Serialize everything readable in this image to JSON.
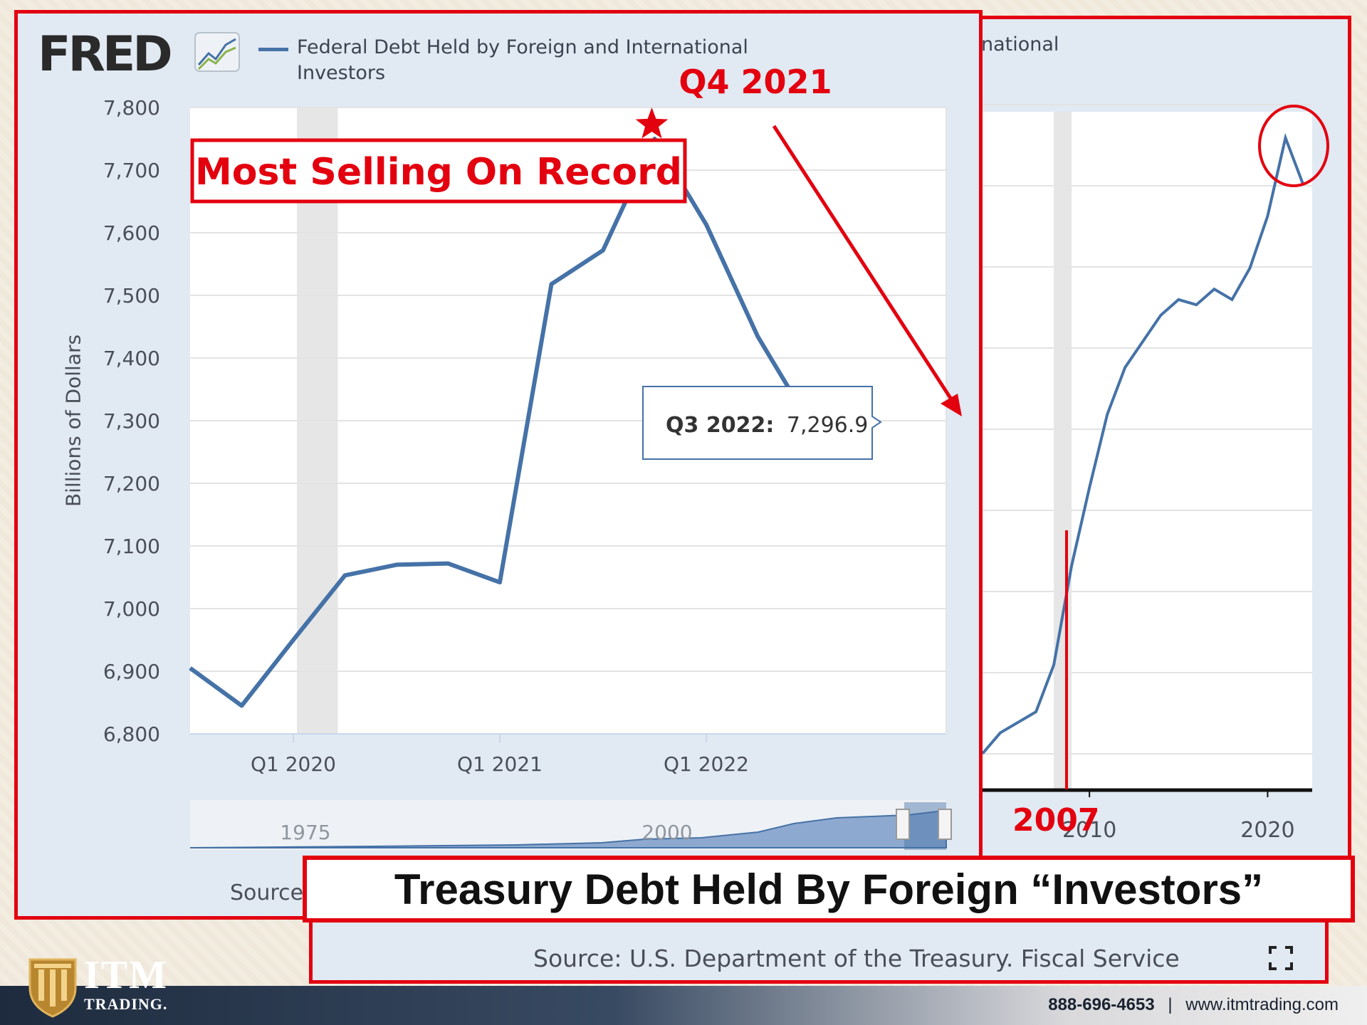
{
  "colors": {
    "series": "#4572a7",
    "annotation": "#e3000f",
    "panel_bg": "#e1e9f2",
    "recession": "#e6e6e6"
  },
  "branding": {
    "fred_logo": "FRED",
    "fred_logo_icon": "trend-line-icon",
    "itm_logo_icon": "column-shield-icon",
    "itm_name": "ITM",
    "itm_sub": "TRADING.",
    "phone": "888-696-4653",
    "separator": "|",
    "website": "www.itmtrading.com"
  },
  "headline": "Treasury Debt Held By Foreign “Investors”",
  "bottom_source": "Source: U.S. Department of the Treasury. Fiscal Service",
  "expand_icon": "expand-icon",
  "left_source_fragment": "Source",
  "annotations": {
    "peak_label": "Q4 2021",
    "record_box": "Most Selling On Record",
    "tooltip_label": "Q3 2022:",
    "tooltip_value": "7,296.9",
    "year_2007": "2007"
  },
  "chart_data": [
    {
      "type": "line",
      "legend": "Federal Debt Held by Foreign and International Investors",
      "ylabel": "Billions of Dollars",
      "ylim": [
        6800,
        7800
      ],
      "yticks": [
        "6,800",
        "6,900",
        "7,000",
        "7,100",
        "7,200",
        "7,300",
        "7,400",
        "7,500",
        "7,600",
        "7,700",
        "7,800"
      ],
      "xticks": [
        "Q1 2020",
        "Q1 2021",
        "Q1 2022"
      ],
      "navigator_labels": [
        "1975",
        "2000"
      ],
      "x": [
        "Q3 2019",
        "Q4 2019",
        "Q1 2020",
        "Q2 2020",
        "Q3 2020",
        "Q4 2020",
        "Q1 2021",
        "Q2 2021",
        "Q3 2021",
        "Q4 2021",
        "Q1 2022",
        "Q2 2022",
        "Q3 2022"
      ],
      "values": [
        6905,
        6845,
        6950,
        7053,
        7070,
        7072,
        7042,
        7518,
        7572,
        7750,
        7613,
        7434,
        7296.9
      ],
      "recession": [
        "Q1 2020",
        "Q2 2020"
      ],
      "grid": true
    },
    {
      "type": "line",
      "legend_fragment": "national",
      "xticks": [
        "2010",
        "2020"
      ],
      "x": [
        2004,
        2005,
        2006,
        2007,
        2008,
        2009,
        2010,
        2011,
        2012,
        2013,
        2014,
        2015,
        2016,
        2017,
        2018,
        2019,
        2020,
        2021,
        2022
      ],
      "values": [
        1850,
        2050,
        2150,
        2250,
        2700,
        3650,
        4400,
        5100,
        5550,
        5800,
        6050,
        6200,
        6150,
        6300,
        6200,
        6500,
        7000,
        7750,
        7300
      ],
      "recession": [
        2008,
        2009
      ],
      "grid": true
    }
  ]
}
